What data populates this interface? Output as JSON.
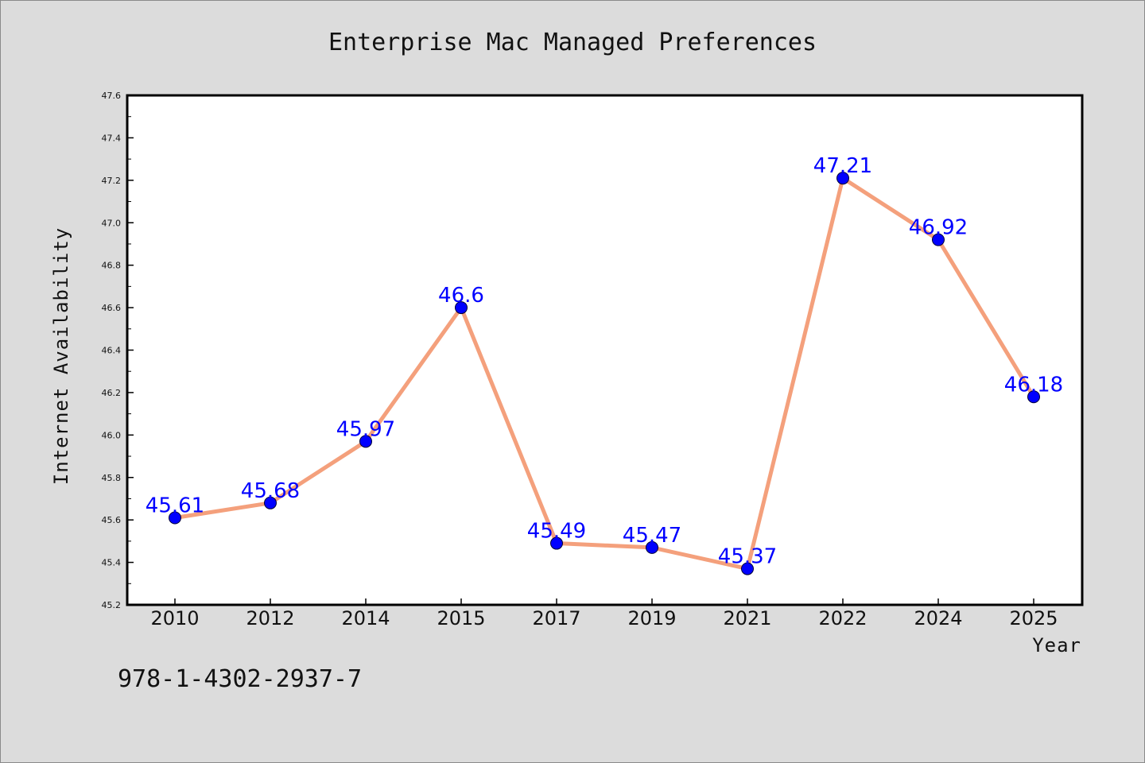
{
  "chart_data": {
    "type": "line",
    "title": "Enterprise Mac Managed Preferences",
    "xlabel": "Year",
    "ylabel": "Internet Availability",
    "categories": [
      "2010",
      "2012",
      "2014",
      "2015",
      "2017",
      "2019",
      "2021",
      "2022",
      "2024",
      "2025"
    ],
    "series": [
      {
        "values": [
          45.61,
          45.68,
          45.97,
          46.6,
          45.49,
          45.47,
          45.37,
          47.21,
          46.92,
          46.18
        ],
        "labels": [
          "45.61",
          "45.68",
          "45.97",
          "46.6",
          "45.49",
          "45.47",
          "45.37",
          "47.21",
          "46.92",
          "46.18"
        ],
        "line_color": "#f4a07c",
        "marker_color": "#0000ff"
      }
    ],
    "ylim": [
      45.2,
      47.6
    ],
    "yticks": [
      "45.2",
      "45.4",
      "45.6",
      "45.8",
      "46.0",
      "46.2",
      "46.4",
      "46.6",
      "46.8",
      "47.0",
      "47.2",
      "47.4",
      "47.6"
    ],
    "grid": false,
    "legend": "none"
  },
  "footnote": "978-1-4302-2937-7",
  "colors": {
    "background": "#dcdcdc",
    "plot_area": "#ffffff",
    "axis": "#000000",
    "data_label": "#0000ff"
  }
}
